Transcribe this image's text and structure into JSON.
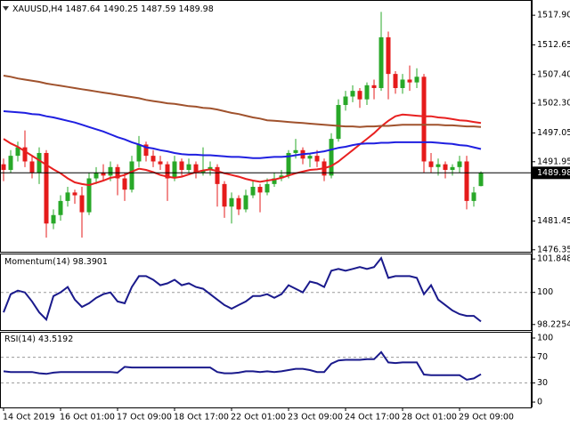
{
  "header": {
    "symbol": "XAUUSD,H4"
  },
  "chart_data": [
    {
      "type": "candlestick",
      "categories": [
        "14 Oct 2019",
        null,
        null,
        null,
        null,
        null,
        null,
        null,
        "16 Oct 01:00",
        null,
        null,
        null,
        null,
        null,
        null,
        null,
        "17 Oct 09:00",
        null,
        null,
        null,
        null,
        null,
        null,
        null,
        "18 Oct 17:00",
        null,
        null,
        null,
        null,
        null,
        null,
        null,
        "22 Oct 01:00",
        null,
        null,
        null,
        null,
        null,
        null,
        null,
        "23 Oct 09:00",
        null,
        null,
        null,
        null,
        null,
        null,
        null,
        "24 Oct 17:00",
        null,
        null,
        null,
        null,
        null,
        null,
        null,
        "28 Oct 01:00",
        null,
        null,
        null,
        null,
        null,
        null,
        null,
        "29 Oct 09:00",
        null,
        null,
        null
      ],
      "candles": [
        [
          1491.5,
          1492.5,
          1488.5,
          1490.5
        ],
        [
          1490.5,
          1494.0,
          1490.0,
          1493.0
        ],
        [
          1493.0,
          1495.5,
          1492.0,
          1494.5
        ],
        [
          1494.5,
          1497.5,
          1491.0,
          1492.0
        ],
        [
          1492.0,
          1493.0,
          1489.0,
          1490.0
        ],
        [
          1490.0,
          1494.5,
          1488.0,
          1493.5
        ],
        [
          1493.5,
          1494.0,
          1478.5,
          1481.0
        ],
        [
          1481.0,
          1483.5,
          1480.0,
          1482.5
        ],
        [
          1482.5,
          1486.0,
          1481.5,
          1485.0
        ],
        [
          1485.0,
          1487.5,
          1484.0,
          1486.5
        ],
        [
          1486.5,
          1487.0,
          1484.5,
          1486.0
        ],
        [
          1486.0,
          1487.5,
          1478.5,
          1483.0
        ],
        [
          1483.0,
          1490.0,
          1482.5,
          1489.0
        ],
        [
          1489.0,
          1491.0,
          1488.0,
          1490.0
        ],
        [
          1490.0,
          1491.5,
          1488.5,
          1489.5
        ],
        [
          1489.5,
          1492.0,
          1488.5,
          1491.0
        ],
        [
          1491.0,
          1491.5,
          1486.0,
          1489.0
        ],
        [
          1489.0,
          1490.0,
          1485.0,
          1487.0
        ],
        [
          1487.0,
          1493.0,
          1486.5,
          1492.0
        ],
        [
          1492.0,
          1496.5,
          1491.0,
          1495.0
        ],
        [
          1495.0,
          1495.5,
          1492.0,
          1493.0
        ],
        [
          1493.0,
          1494.0,
          1491.0,
          1492.0
        ],
        [
          1492.0,
          1493.0,
          1490.5,
          1491.5
        ],
        [
          1491.5,
          1492.0,
          1485.0,
          1489.0
        ],
        [
          1489.0,
          1493.0,
          1488.5,
          1492.0
        ],
        [
          1492.0,
          1492.5,
          1489.5,
          1490.5
        ],
        [
          1490.5,
          1492.5,
          1490.0,
          1491.5
        ],
        [
          1491.5,
          1492.0,
          1489.0,
          1490.0
        ],
        [
          1490.0,
          1494.5,
          1489.5,
          1490.5
        ],
        [
          1490.5,
          1492.0,
          1489.5,
          1491.0
        ],
        [
          1491.0,
          1491.5,
          1484.0,
          1488.0
        ],
        [
          1488.0,
          1488.5,
          1482.0,
          1484.0
        ],
        [
          1484.0,
          1486.5,
          1481.0,
          1485.5
        ],
        [
          1485.5,
          1486.0,
          1482.5,
          1483.5
        ],
        [
          1483.5,
          1487.0,
          1483.0,
          1486.0
        ],
        [
          1486.0,
          1488.5,
          1485.5,
          1487.5
        ],
        [
          1487.5,
          1488.0,
          1483.0,
          1486.5
        ],
        [
          1486.5,
          1489.0,
          1486.0,
          1488.0
        ],
        [
          1488.0,
          1490.0,
          1487.5,
          1489.0
        ],
        [
          1489.0,
          1490.5,
          1488.5,
          1489.5
        ],
        [
          1489.5,
          1494.0,
          1489.0,
          1493.5
        ],
        [
          1493.5,
          1496.0,
          1492.5,
          1494.0
        ],
        [
          1494.0,
          1494.5,
          1491.5,
          1492.5
        ],
        [
          1492.5,
          1493.5,
          1491.0,
          1493.0
        ],
        [
          1493.0,
          1494.0,
          1491.0,
          1492.0
        ],
        [
          1492.0,
          1492.5,
          1488.5,
          1489.5
        ],
        [
          1489.5,
          1497.0,
          1489.0,
          1496.0
        ],
        [
          1496.0,
          1503.0,
          1495.5,
          1502.0
        ],
        [
          1502.0,
          1504.5,
          1501.0,
          1503.5
        ],
        [
          1503.5,
          1505.5,
          1502.5,
          1504.5
        ],
        [
          1504.5,
          1505.0,
          1501.5,
          1503.0
        ],
        [
          1503.0,
          1506.0,
          1502.0,
          1505.5
        ],
        [
          1505.5,
          1506.5,
          1503.0,
          1505.0
        ],
        [
          1505.0,
          1518.5,
          1504.5,
          1514.0
        ],
        [
          1514.0,
          1515.0,
          1503.0,
          1507.5
        ],
        [
          1507.5,
          1508.0,
          1504.0,
          1505.0
        ],
        [
          1505.0,
          1507.5,
          1504.0,
          1506.5
        ],
        [
          1506.5,
          1509.0,
          1504.5,
          1506.0
        ],
        [
          1506.0,
          1508.5,
          1505.0,
          1507.0
        ],
        [
          1507.0,
          1507.5,
          1490.0,
          1492.0
        ],
        [
          1492.0,
          1493.5,
          1490.0,
          1491.0
        ],
        [
          1491.0,
          1492.5,
          1489.5,
          1491.5
        ],
        [
          1491.5,
          1492.0,
          1489.0,
          1490.5
        ],
        [
          1490.5,
          1491.5,
          1489.5,
          1491.0
        ],
        [
          1491.0,
          1493.0,
          1490.0,
          1492.0
        ],
        [
          1492.0,
          1493.0,
          1483.5,
          1485.0
        ],
        [
          1485.0,
          1487.5,
          1484.0,
          1486.5
        ],
        [
          1487.64,
          1490.25,
          1487.59,
          1489.98
        ]
      ],
      "bull_color": "#28a828",
      "bear_color": "#e51b1b",
      "series": [
        {
          "color": "#e82020",
          "values": [
            1496.0,
            1495.2,
            1494.6,
            1493.8,
            1493.0,
            1492.2,
            1491.4,
            1490.6,
            1489.9,
            1489.0,
            1488.3,
            1488.0,
            1487.8,
            1488.2,
            1488.6,
            1489.1,
            1489.3,
            1489.6,
            1490.2,
            1490.7,
            1490.5,
            1490.1,
            1489.6,
            1489.3,
            1489.1,
            1489.3,
            1489.7,
            1490.1,
            1490.4,
            1490.6,
            1490.3,
            1489.9,
            1489.6,
            1489.3,
            1488.9,
            1488.6,
            1488.4,
            1488.6,
            1488.8,
            1489.1,
            1489.5,
            1489.9,
            1490.2,
            1490.5,
            1490.6,
            1490.8,
            1491.2,
            1492.0,
            1493.0,
            1494.0,
            1495.0,
            1496.0,
            1497.0,
            1498.2,
            1499.2,
            1500.0,
            1500.3,
            1500.2,
            1500.1,
            1500.0,
            1500.0,
            1499.8,
            1499.7,
            1499.5,
            1499.3,
            1499.2,
            1499.0,
            1498.8
          ]
        },
        {
          "color": "#1f1fe0",
          "values": [
            1500.9,
            1500.8,
            1500.7,
            1500.6,
            1500.4,
            1500.3,
            1500.0,
            1499.8,
            1499.5,
            1499.2,
            1498.9,
            1498.5,
            1498.1,
            1497.7,
            1497.3,
            1496.8,
            1496.3,
            1495.9,
            1495.4,
            1495.0,
            1494.5,
            1494.3,
            1494.0,
            1493.8,
            1493.5,
            1493.3,
            1493.2,
            1493.2,
            1493.1,
            1493.1,
            1493.0,
            1492.9,
            1492.8,
            1492.8,
            1492.7,
            1492.6,
            1492.6,
            1492.7,
            1492.8,
            1492.8,
            1492.9,
            1493.1,
            1493.3,
            1493.4,
            1493.6,
            1493.8,
            1494.1,
            1494.4,
            1494.6,
            1494.9,
            1495.1,
            1495.2,
            1495.2,
            1495.3,
            1495.3,
            1495.4,
            1495.4,
            1495.4,
            1495.4,
            1495.4,
            1495.4,
            1495.3,
            1495.2,
            1495.1,
            1494.9,
            1494.8,
            1494.5,
            1494.2
          ]
        },
        {
          "color": "#a0522d",
          "values": [
            1507.2,
            1507.0,
            1506.7,
            1506.5,
            1506.3,
            1506.1,
            1505.8,
            1505.6,
            1505.4,
            1505.2,
            1505.0,
            1504.8,
            1504.6,
            1504.4,
            1504.2,
            1504.0,
            1503.8,
            1503.6,
            1503.4,
            1503.2,
            1502.9,
            1502.7,
            1502.5,
            1502.3,
            1502.2,
            1502.0,
            1501.8,
            1501.7,
            1501.5,
            1501.4,
            1501.2,
            1500.9,
            1500.6,
            1500.4,
            1500.1,
            1499.8,
            1499.6,
            1499.3,
            1499.2,
            1499.1,
            1499.0,
            1498.9,
            1498.8,
            1498.7,
            1498.6,
            1498.5,
            1498.4,
            1498.3,
            1498.2,
            1498.2,
            1498.1,
            1498.2,
            1498.2,
            1498.3,
            1498.3,
            1498.4,
            1498.5,
            1498.5,
            1498.5,
            1498.5,
            1498.5,
            1498.5,
            1498.4,
            1498.4,
            1498.3,
            1498.2,
            1498.2,
            1498.1
          ]
        }
      ],
      "ylim": [
        1476.0,
        1520.6
      ],
      "yticks": [
        {
          "value": 1517.9,
          "label": "1517.90"
        },
        1512.65,
        {
          "value": 1507.4,
          "label": "1507.40"
        },
        {
          "value": 1502.3,
          "label": "1502.30"
        },
        1497.05,
        1491.95,
        1481.45,
        1476.35
      ],
      "current_price_line": true
    },
    {
      "type": "line",
      "name": "Momentum(14)",
      "color": "#1a1a8c",
      "values": [
        98.9,
        99.9,
        100.1,
        100.0,
        99.5,
        98.9,
        98.5,
        99.8,
        100.0,
        100.3,
        99.6,
        99.2,
        99.4,
        99.7,
        99.9,
        100.0,
        99.5,
        99.4,
        100.3,
        100.9,
        100.9,
        100.7,
        100.4,
        100.5,
        100.7,
        100.4,
        100.5,
        100.3,
        100.2,
        99.9,
        99.6,
        99.3,
        99.1,
        99.3,
        99.5,
        99.8,
        99.8,
        99.9,
        99.7,
        99.9,
        100.4,
        100.2,
        100.0,
        100.6,
        100.5,
        100.3,
        101.2,
        101.3,
        101.2,
        101.3,
        101.4,
        101.3,
        101.4,
        101.9,
        100.8,
        100.9,
        100.9,
        100.9,
        100.8,
        99.9,
        100.4,
        99.6,
        99.3,
        99.0,
        98.8,
        98.7,
        98.7,
        98.3901
      ],
      "ylim": [
        97.92,
        102.15
      ],
      "yticks": [
        101.8487,
        100,
        98.2254
      ],
      "levels": [
        100
      ]
    },
    {
      "type": "line",
      "name": "RSI(14)",
      "color": "#1a1a8c",
      "values": [
        48,
        47,
        47,
        47,
        47,
        45,
        44,
        46,
        47,
        47,
        47,
        47,
        47,
        47,
        47,
        47,
        46,
        55,
        54,
        54,
        54,
        54,
        54,
        54,
        54,
        54,
        54,
        54,
        54,
        54,
        47,
        45,
        45,
        46,
        48,
        48,
        47,
        48,
        47,
        48,
        50,
        52,
        52,
        50,
        47,
        47,
        60,
        65,
        66,
        66,
        66,
        67,
        67,
        78,
        62,
        61,
        62,
        62,
        62,
        43,
        42,
        42,
        42,
        42,
        42,
        35,
        37,
        43.5192
      ],
      "ylim": [
        -8.3,
        109.7
      ],
      "yticks": [
        100,
        70,
        30,
        0
      ],
      "levels": [
        70,
        30
      ]
    }
  ]
}
